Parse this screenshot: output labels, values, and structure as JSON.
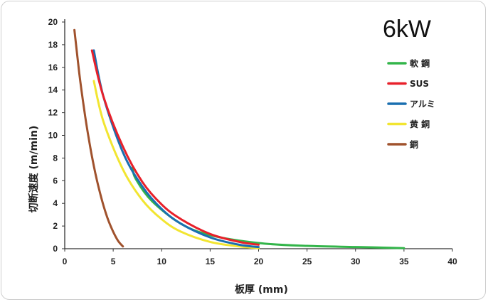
{
  "chart_data": {
    "type": "line",
    "title": "6kW",
    "xlabel": "板厚 (mm)",
    "ylabel": "切断速度 (m/min)",
    "xlim": [
      0,
      40
    ],
    "ylim": [
      0,
      20
    ],
    "xticks": [
      0,
      5,
      10,
      15,
      20,
      25,
      30,
      35,
      40
    ],
    "yticks": [
      0,
      2,
      4,
      6,
      8,
      10,
      12,
      14,
      16,
      18,
      20
    ],
    "grid": false,
    "legend_position": "top-right",
    "series": [
      {
        "name": "軟 鋼",
        "color": "#33b54a",
        "x": [
          7,
          7.3,
          9,
          12,
          15,
          20,
          25,
          30,
          35
        ],
        "y": [
          7.2,
          6.2,
          4.2,
          2.2,
          1.2,
          0.5,
          0.25,
          0.15,
          0.05
        ]
      },
      {
        "name": "SUS",
        "color": "#e8202a",
        "x": [
          2.8,
          4,
          6,
          8,
          10,
          12,
          15,
          18,
          20
        ],
        "y": [
          17.5,
          13.4,
          9.0,
          5.9,
          3.9,
          2.6,
          1.3,
          0.6,
          0.35
        ]
      },
      {
        "name": "アルミ",
        "color": "#1a6fb0",
        "x": [
          3,
          4,
          6,
          8,
          10,
          12,
          15,
          18,
          20
        ],
        "y": [
          17.5,
          13.4,
          8.5,
          5.5,
          3.5,
          2.2,
          1.0,
          0.35,
          0.15
        ]
      },
      {
        "name": "黄 銅",
        "color": "#f2e531",
        "x": [
          3,
          4,
          6,
          8,
          10,
          12,
          15,
          18,
          20
        ],
        "y": [
          14.8,
          11.2,
          7.0,
          4.3,
          2.6,
          1.5,
          0.6,
          0.2,
          0.05
        ]
      },
      {
        "name": "銅",
        "color": "#a0522d",
        "x": [
          1,
          1.5,
          2,
          2.5,
          3,
          3.5,
          4,
          4.5,
          5,
          5.5,
          6
        ],
        "y": [
          19.3,
          15.5,
          12.3,
          9.6,
          7.3,
          5.4,
          3.8,
          2.5,
          1.5,
          0.7,
          0.2
        ]
      }
    ]
  }
}
